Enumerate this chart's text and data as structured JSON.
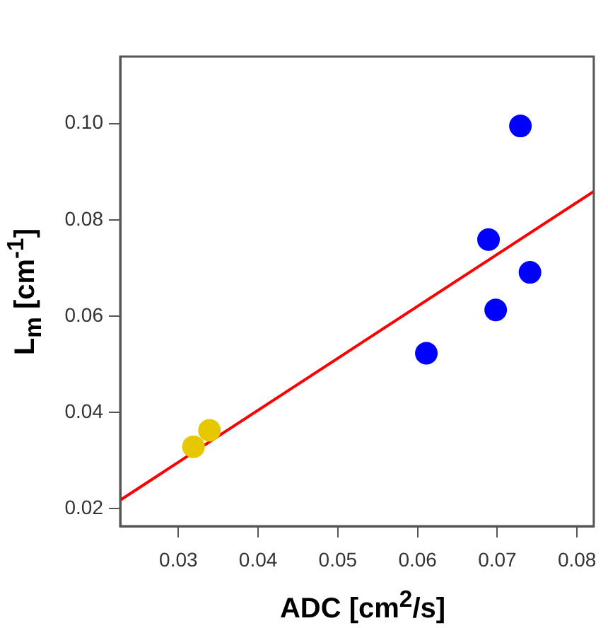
{
  "chart_data": {
    "type": "scatter",
    "xlabel": "ADC [cm$^{2}$/s]",
    "ylabel": "L$_{m}$ [cm$^{-1}$]",
    "xlim": [
      0.0227,
      0.0821
    ],
    "xticks": [
      0.03,
      0.04,
      0.05,
      0.06,
      0.07,
      0.08
    ],
    "ylim": [
      0.0164,
      0.1139
    ],
    "yticks": [
      0.02,
      0.04,
      0.06,
      0.08,
      {
        "value": 0.1,
        "label": "0.10"
      }
    ],
    "grid": false,
    "legend": false,
    "marker": "circle",
    "series": [
      {
        "color": "#e6c800",
        "x": [
          0.0319,
          0.0339
        ],
        "values": [
          0.0329,
          0.0363
        ]
      },
      {
        "color": "#0000ff",
        "x": [
          0.0611,
          0.0689,
          0.0698,
          0.0729,
          0.0741
        ],
        "values": [
          0.0523,
          0.0759,
          0.0613,
          0.0995,
          0.0691
        ]
      },
      {
        "type": "line",
        "color": "#ff0000",
        "marker": "none",
        "x": [
          0.0227,
          0.0821
        ],
        "values": [
          0.0218,
          0.0859
        ]
      }
    ]
  }
}
